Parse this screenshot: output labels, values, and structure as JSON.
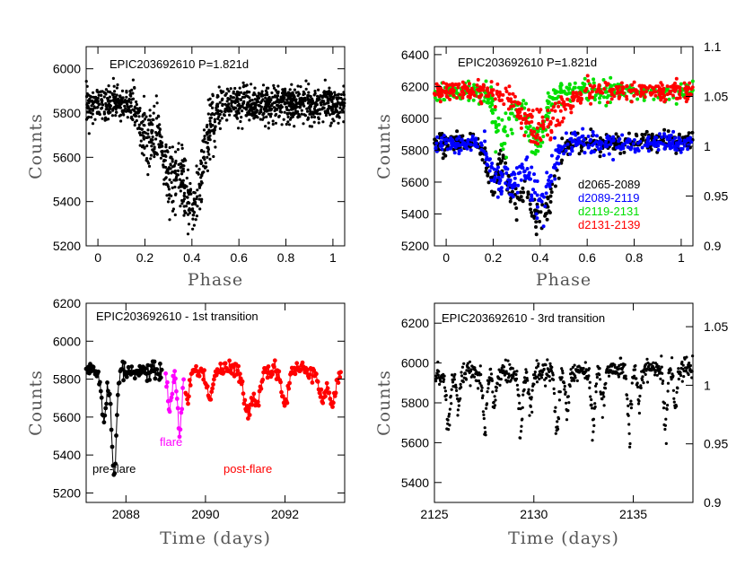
{
  "figure": {
    "colors": {
      "black": "#000000",
      "blue": "#0000ff",
      "green": "#00e000",
      "red": "#ff0000",
      "magenta": "#ff00ff"
    }
  },
  "chart_data": [
    {
      "type": "scatter",
      "title": "EPIC203692610 P=1.821d",
      "xlabel": "Phase",
      "ylabel": "Counts",
      "xlim": [
        -0.05,
        1.05
      ],
      "ylim": [
        5200,
        6100
      ],
      "xticks": [
        0,
        0.2,
        0.4,
        0.6,
        0.8,
        1
      ],
      "xtick_labels": [
        "0",
        "0.2",
        "0.4",
        "0.6",
        "0.8",
        "1"
      ],
      "yticks": [
        5200,
        5400,
        5600,
        5800,
        6000
      ],
      "series": [
        {
          "color": "#000000",
          "baseline": 5840,
          "dips": [
            [
              0.21,
              180,
              0.025
            ],
            [
              0.3,
              300,
              0.03
            ],
            [
              0.4,
              480,
              0.045
            ]
          ]
        }
      ]
    },
    {
      "type": "scatter",
      "title": "EPIC203692610 P=1.821d",
      "xlabel": "Phase",
      "ylabel": "Counts",
      "xlim": [
        -0.05,
        1.05
      ],
      "ylim": [
        5200,
        6450
      ],
      "xticks": [
        0,
        0.2,
        0.4,
        0.6,
        0.8,
        1
      ],
      "xtick_labels": [
        "0",
        "0.2",
        "0.4",
        "0.6",
        "0.8",
        "1"
      ],
      "yticks": [
        5200,
        5400,
        5600,
        5800,
        6000,
        6200,
        6400
      ],
      "y2ticks": [
        0.9,
        0.95,
        1,
        1.05,
        1.1
      ],
      "y2range": [
        0.9,
        1.1
      ],
      "series": [
        {
          "name": "d2065-2089",
          "color": "#000000",
          "baseline": 5850,
          "dips": [
            [
              0.2,
              250,
              0.025
            ],
            [
              0.29,
              350,
              0.03
            ],
            [
              0.4,
              500,
              0.045
            ]
          ]
        },
        {
          "name": "d2089-2119",
          "color": "#0000ff",
          "baseline": 5840,
          "dips": [
            [
              0.21,
              230,
              0.025
            ],
            [
              0.28,
              280,
              0.03
            ],
            [
              0.4,
              370,
              0.04
            ]
          ]
        },
        {
          "name": "d2119-2131",
          "color": "#00e000",
          "baseline": 6170,
          "dips": [
            [
              0.24,
              300,
              0.03
            ],
            [
              0.38,
              300,
              0.04
            ]
          ]
        },
        {
          "name": "d2131-2139",
          "color": "#ff0000",
          "baseline": 6170,
          "dips": [
            [
              0.4,
              230,
              0.08
            ]
          ]
        }
      ]
    },
    {
      "type": "line",
      "title": "EPIC203692610 - 1st transition",
      "xlabel": "Time (days)",
      "ylabel": "Counts",
      "xlim": [
        2087,
        2093.5
      ],
      "ylim": [
        5150,
        6200
      ],
      "xticks": [
        2088,
        2090,
        2092
      ],
      "yticks": [
        5200,
        5400,
        5600,
        5800,
        6000,
        6200
      ],
      "series": [
        {
          "name": "pre-flare",
          "color": "#000000",
          "x0": 2087.0,
          "x1": 2088.9,
          "baseline": 5840,
          "dips": [
            [
              2087.45,
              250,
              0.06
            ],
            [
              2087.7,
              530,
              0.06
            ]
          ]
        },
        {
          "name": "flare",
          "color": "#ff00ff",
          "x0": 2089.0,
          "x1": 2089.45,
          "baseline": 5840,
          "dips": [
            [
              2089.1,
              190,
              0.05
            ],
            [
              2089.35,
              330,
              0.05
            ]
          ]
        },
        {
          "name": "post-flare",
          "color": "#ff0000",
          "x0": 2089.5,
          "x1": 2093.4,
          "baseline": 5850,
          "dips": [
            [
              2089.55,
              150,
              0.06
            ],
            [
              2090.1,
              140,
              0.08
            ],
            [
              2091.05,
              220,
              0.1
            ],
            [
              2091.3,
              160,
              0.08
            ],
            [
              2092.0,
              180,
              0.08
            ],
            [
              2092.95,
              160,
              0.08
            ],
            [
              2093.2,
              180,
              0.08
            ]
          ]
        }
      ]
    },
    {
      "type": "scatter",
      "title": "EPIC203692610 - 3rd transition",
      "xlabel": "Time (days)",
      "ylabel": "Counts",
      "xlim": [
        2125,
        2138
      ],
      "ylim": [
        5300,
        6300
      ],
      "xticks": [
        2125,
        2130,
        2135
      ],
      "yticks": [
        5400,
        5600,
        5800,
        6000,
        6200
      ],
      "y2ticks": [
        0.9,
        0.95,
        1,
        1.05
      ],
      "y2range": [
        0.9,
        1.07
      ],
      "series": [
        {
          "color": "#000000",
          "baseline": 5940,
          "period": 1.821,
          "t0": 2125.7,
          "dips": [
            [
              0.0,
              300,
              0.05
            ],
            [
              0.27,
              180,
              0.05
            ]
          ]
        }
      ]
    }
  ],
  "annotations": {
    "legend_tr": [
      "d2065-2089",
      "d2089-2119",
      "d2119-2131",
      "d2131-2139"
    ],
    "bl_pre": "pre-flare",
    "bl_flare": "flare",
    "bl_post": "post-flare"
  }
}
